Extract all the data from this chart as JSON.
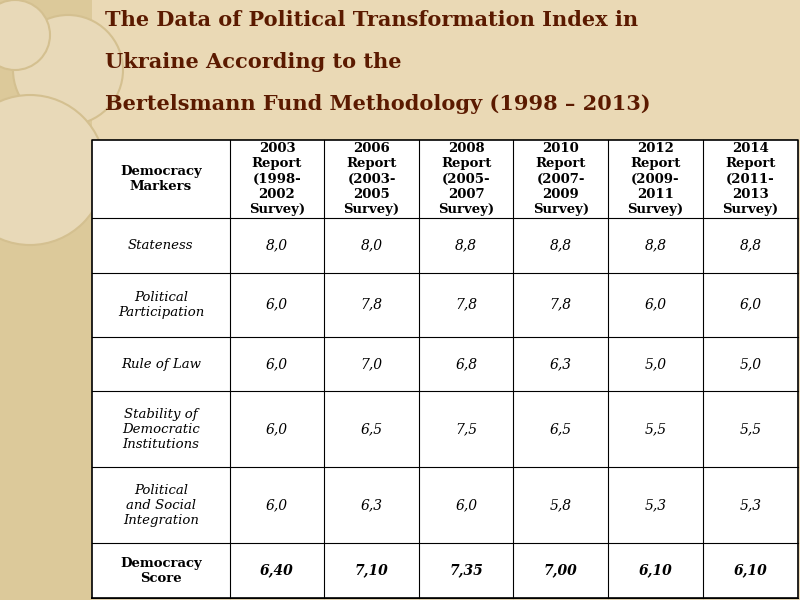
{
  "title_line1": "The Data of Political Transformation Index in",
  "title_line2": "Ukraine According to the",
  "title_line3": "Bertelsmann Fund Methodology (1998 – 2013)",
  "title_color": "#5B1A00",
  "background_color": "#EAD9B5",
  "left_panel_color": "#DCC99A",
  "col_headers": [
    "Democracy\nMarkers",
    "2003\nReport\n(1998-\n2002\nSurvey)",
    "2006\nReport\n(2003-\n2005\nSurvey)",
    "2008\nReport\n(2005-\n2007\nSurvey)",
    "2010\nReport\n(2007-\n2009\nSurvey)",
    "2012\nReport\n(2009-\n2011\nSurvey)",
    "2014\nReport\n(2011-\n2013\nSurvey)"
  ],
  "row_labels": [
    "Stateness",
    "Political\nParticipation",
    "Rule of Law",
    "Stability of\nDemocratic\nInstitutions",
    "Political\nand Social\nIntegration",
    "Democracy\nScore"
  ],
  "row_labels_italic": [
    true,
    true,
    true,
    true,
    true,
    false
  ],
  "row_bold": [
    false,
    false,
    false,
    false,
    false,
    true
  ],
  "data": [
    [
      "8,0",
      "8,0",
      "8,8",
      "8,8",
      "8,8",
      "8,8"
    ],
    [
      "6,0",
      "7,8",
      "7,8",
      "7,8",
      "6,0",
      "6,0"
    ],
    [
      "6,0",
      "7,0",
      "6,8",
      "6,3",
      "5,0",
      "5,0"
    ],
    [
      "6,0",
      "6,5",
      "7,5",
      "6,5",
      "5,5",
      "5,5"
    ],
    [
      "6,0",
      "6,3",
      "6,0",
      "5,8",
      "5,3",
      "5,3"
    ],
    [
      "6,40",
      "7,10",
      "7,35",
      "7,00",
      "6,10",
      "6,10"
    ]
  ],
  "title_fontsize": 15,
  "header_fontsize": 9.5,
  "data_fontsize": 10,
  "label_fontsize": 9.5
}
